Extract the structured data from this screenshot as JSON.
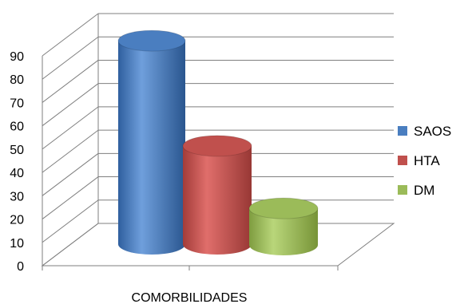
{
  "chart_data": {
    "type": "bar",
    "style": "3d-cylinder",
    "title": "",
    "xlabel": "",
    "ylabel": "",
    "categories": [
      "COMORBILIDADES"
    ],
    "series": [
      {
        "name": "SAOS",
        "values": [
          89
        ],
        "color": "#4a7ec0"
      },
      {
        "name": "HTA",
        "values": [
          43
        ],
        "color": "#c0504d"
      },
      {
        "name": "DM",
        "values": [
          16
        ],
        "color": "#9bbb59"
      }
    ],
    "ylim": [
      0,
      90
    ],
    "yticks": [
      "0",
      "10",
      "20",
      "30",
      "40",
      "50",
      "60",
      "70",
      "80",
      "90"
    ],
    "grid": true,
    "legend_position": "right"
  }
}
